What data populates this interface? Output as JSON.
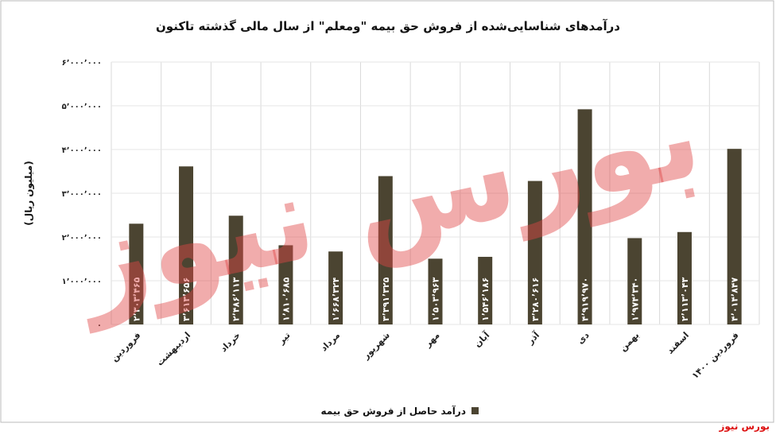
{
  "chart_data": {
    "type": "bar",
    "title": "درآمدهای شناسایی‌شده از فروش حق بیمه \"ومعلم\" از سال مالی گذشته تاکنون",
    "y_label": "(میلیون ریال)",
    "categories": [
      "فروردین",
      "اردیبهشت",
      "خرداد",
      "تیر",
      "مرداد",
      "شهریور",
      "مهر",
      "آبان",
      "آذر",
      "دی",
      "بهمن",
      "اسفند",
      "فروردین ۱۴۰۰"
    ],
    "series": [
      {
        "name": "درآمد حاصل از فروش حق بیمه",
        "color": "#4b4431",
        "values": [
          2303465,
          3613656,
          2486113,
          1810685,
          1668324,
          3391325,
          1503963,
          1546186,
          3280616,
          4919970,
          1974340,
          2113043,
          4014847
        ],
        "value_labels": [
          "۲٬۳۰۳٬۴۶۵",
          "۳٬۶۱۳٬۶۵۶",
          "۲٬۴۸۶٬۱۱۳",
          "۱٬۸۱۰٬۶۸۵",
          "۱٬۶۶۸٬۳۲۴",
          "۳٬۳۹۱٬۳۲۵",
          "۱٬۵۰۳٬۹۶۳",
          "۱٬۵۴۶٬۱۸۶",
          "۳٬۲۸۰٬۶۱۶",
          "۴٬۹۱۹٬۹۷۰",
          "۱٬۹۷۴٬۳۴۰",
          "۲٬۱۱۳٬۰۴۳",
          "۴٬۰۱۴٬۸۴۷"
        ]
      }
    ],
    "ylim": [
      0,
      6000000
    ],
    "yticks": [
      {
        "value": 0,
        "label": "۰"
      },
      {
        "value": 1000000,
        "label": "۱٬۰۰۰٬۰۰۰"
      },
      {
        "value": 2000000,
        "label": "۲٬۰۰۰٬۰۰۰"
      },
      {
        "value": 3000000,
        "label": "۳٬۰۰۰٬۰۰۰"
      },
      {
        "value": 4000000,
        "label": "۴٬۰۰۰٬۰۰۰"
      },
      {
        "value": 5000000,
        "label": "۵٬۰۰۰٬۰۰۰"
      },
      {
        "value": 6000000,
        "label": "۶٬۰۰۰٬۰۰۰"
      }
    ],
    "legend": "bottom",
    "watermark": "بورس نیوز",
    "source": "بورس نیوز"
  }
}
